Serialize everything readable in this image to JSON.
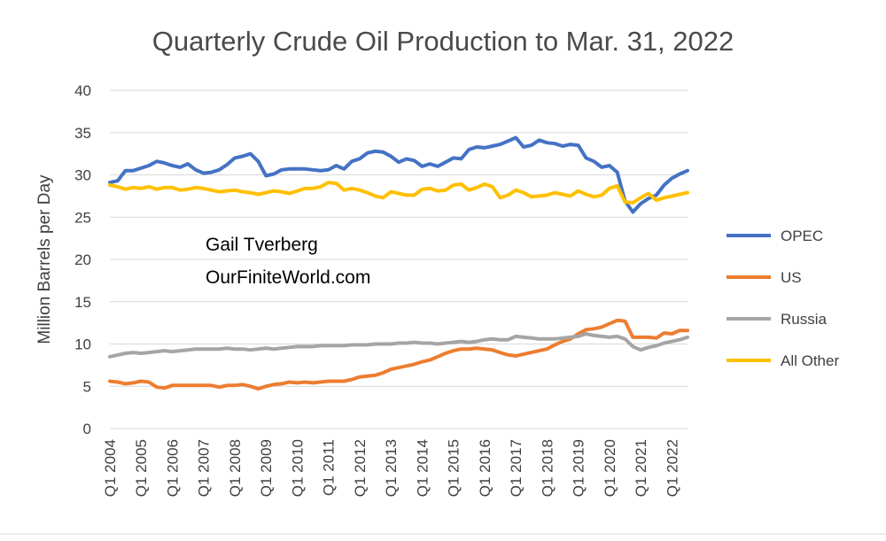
{
  "chart_data": {
    "type": "line",
    "title": "Quarterly Crude Oil Production to Mar. 31, 2022",
    "xlabel": "",
    "ylabel": "Million Barrels per Day",
    "ylim": [
      0,
      40
    ],
    "yticks": [
      0,
      5,
      10,
      15,
      20,
      25,
      30,
      35,
      40
    ],
    "xticks": [
      "Q1 2004",
      "Q1 2005",
      "Q1 2006",
      "Q1 2007",
      "Q1 2008",
      "Q1 2009",
      "Q1 2010",
      "Q1 2011",
      "Q1 2012",
      "Q1 2013",
      "Q1 2014",
      "Q1 2015",
      "Q1 2016",
      "Q1 2017",
      "Q1 2018",
      "Q1 2019",
      "Q1 2020",
      "Q1 2021",
      "Q1 2022"
    ],
    "grid": "horizontal",
    "legend_position": "right",
    "annotation_lines": [
      "Gail Tverberg",
      "OurFiniteWorld.com"
    ],
    "x_first": "Q1 2004",
    "x_last": "Q1 2022",
    "series": [
      {
        "name": "OPEC",
        "color": "#4472C4",
        "values": [
          29.1,
          29.3,
          30.5,
          30.5,
          30.8,
          31.1,
          31.6,
          31.4,
          31.1,
          30.9,
          31.3,
          30.6,
          30.2,
          30.3,
          30.6,
          31.2,
          32.0,
          32.2,
          32.5,
          31.6,
          29.9,
          30.1,
          30.6,
          30.7,
          30.7,
          30.7,
          30.6,
          30.5,
          30.6,
          31.1,
          30.7,
          31.6,
          31.9,
          32.6,
          32.8,
          32.7,
          32.2,
          31.5,
          31.9,
          31.7,
          31.0,
          31.3,
          31.0,
          31.5,
          32.0,
          31.9,
          33.0,
          33.3,
          33.2,
          33.4,
          33.6,
          34.0,
          34.4,
          33.3,
          33.5,
          34.1,
          33.8,
          33.7,
          33.4,
          33.6,
          33.5,
          32.0,
          31.6,
          30.9,
          31.1,
          30.3,
          26.9,
          25.6,
          26.6,
          27.2,
          27.6,
          28.8,
          29.6,
          30.1,
          30.5
        ]
      },
      {
        "name": "US",
        "color": "#ED7D31",
        "values": [
          5.6,
          5.5,
          5.3,
          5.4,
          5.6,
          5.5,
          4.9,
          4.8,
          5.1,
          5.1,
          5.1,
          5.1,
          5.1,
          5.1,
          4.9,
          5.1,
          5.1,
          5.2,
          5.0,
          4.7,
          5.0,
          5.2,
          5.3,
          5.5,
          5.4,
          5.5,
          5.4,
          5.5,
          5.6,
          5.6,
          5.6,
          5.8,
          6.1,
          6.2,
          6.3,
          6.6,
          7.0,
          7.2,
          7.4,
          7.6,
          7.9,
          8.1,
          8.5,
          8.9,
          9.2,
          9.4,
          9.4,
          9.5,
          9.4,
          9.3,
          9.0,
          8.7,
          8.6,
          8.8,
          9.0,
          9.2,
          9.4,
          9.9,
          10.3,
          10.6,
          11.2,
          11.7,
          11.8,
          12.0,
          12.4,
          12.8,
          12.7,
          10.8,
          10.8,
          10.8,
          10.7,
          11.3,
          11.2,
          11.6,
          11.6
        ]
      },
      {
        "name": "Russia",
        "color": "#A5A5A5",
        "values": [
          8.5,
          8.7,
          8.9,
          9.0,
          8.9,
          9.0,
          9.1,
          9.2,
          9.1,
          9.2,
          9.3,
          9.4,
          9.4,
          9.4,
          9.4,
          9.5,
          9.4,
          9.4,
          9.3,
          9.4,
          9.5,
          9.4,
          9.5,
          9.6,
          9.7,
          9.7,
          9.7,
          9.8,
          9.8,
          9.8,
          9.8,
          9.9,
          9.9,
          9.9,
          10.0,
          10.0,
          10.0,
          10.1,
          10.1,
          10.2,
          10.1,
          10.1,
          10.0,
          10.1,
          10.2,
          10.3,
          10.2,
          10.3,
          10.5,
          10.6,
          10.5,
          10.5,
          10.9,
          10.8,
          10.7,
          10.6,
          10.6,
          10.6,
          10.7,
          10.8,
          10.9,
          11.2,
          11.0,
          10.9,
          10.8,
          10.9,
          10.6,
          9.7,
          9.3,
          9.6,
          9.8,
          10.1,
          10.3,
          10.5,
          10.8
        ]
      },
      {
        "name": "All Other",
        "color": "#FFC000",
        "values": [
          28.8,
          28.6,
          28.3,
          28.5,
          28.4,
          28.6,
          28.3,
          28.5,
          28.5,
          28.2,
          28.3,
          28.5,
          28.4,
          28.2,
          28.0,
          28.1,
          28.2,
          28.0,
          27.9,
          27.7,
          27.9,
          28.1,
          28.0,
          27.8,
          28.1,
          28.4,
          28.4,
          28.6,
          29.1,
          29.0,
          28.2,
          28.4,
          28.2,
          27.9,
          27.5,
          27.3,
          28.0,
          27.8,
          27.6,
          27.6,
          28.3,
          28.4,
          28.1,
          28.2,
          28.8,
          28.9,
          28.2,
          28.5,
          28.9,
          28.6,
          27.3,
          27.6,
          28.2,
          27.9,
          27.4,
          27.5,
          27.6,
          27.9,
          27.7,
          27.5,
          28.1,
          27.7,
          27.4,
          27.6,
          28.4,
          28.7,
          26.8,
          26.7,
          27.3,
          27.8,
          27.0,
          27.3,
          27.5,
          27.7,
          27.9
        ]
      }
    ]
  }
}
